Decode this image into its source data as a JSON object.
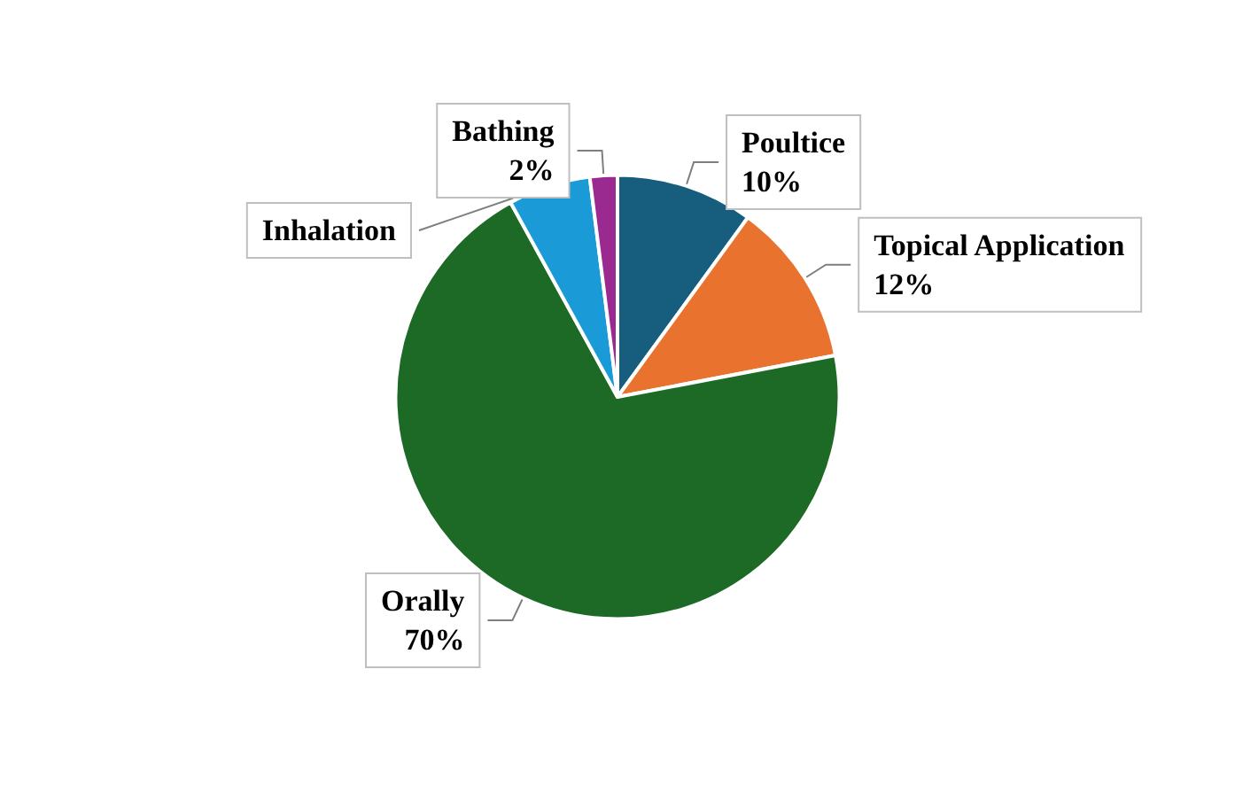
{
  "chart_data": {
    "type": "pie",
    "categories": [
      "Poultice",
      "Topical Application",
      "Orally",
      "Inhalation",
      "Bathing"
    ],
    "values": [
      10,
      12,
      70,
      6,
      2
    ],
    "colors": [
      "#175e7e",
      "#e8722e",
      "#1d6a27",
      "#1a9ad6",
      "#9b2a90"
    ],
    "value_labels": [
      "10%",
      "12%",
      "70%",
      null,
      "2%"
    ],
    "legend": false
  }
}
